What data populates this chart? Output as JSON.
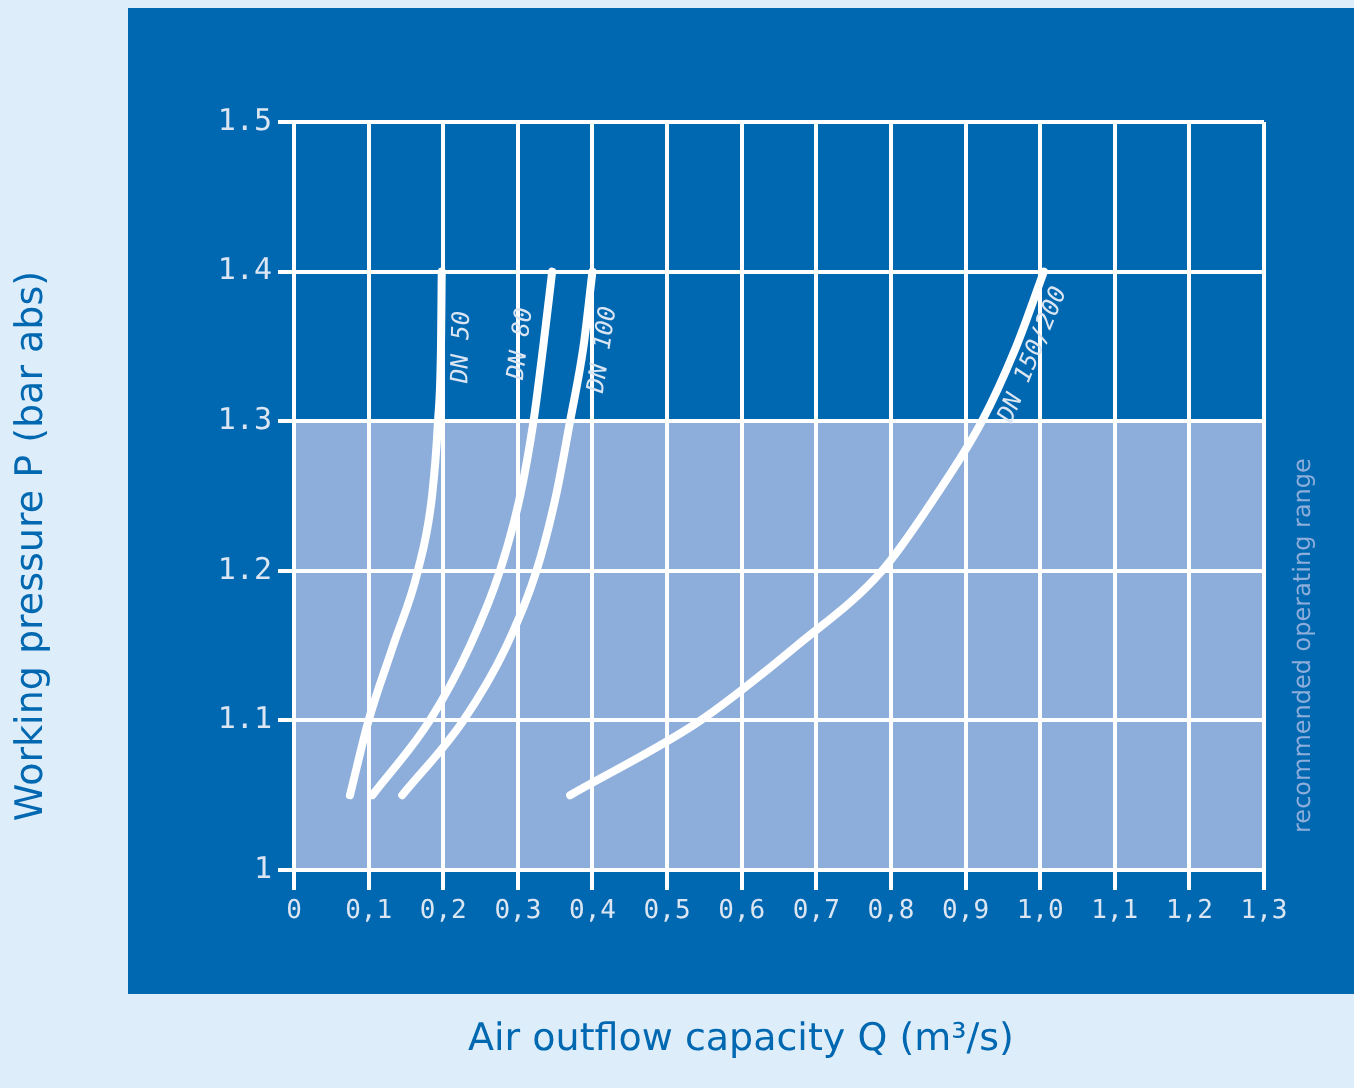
{
  "chart_data": {
    "type": "line",
    "xlabel": "Air outflow capacity Q (m³/s)",
    "ylabel": "Working pressure P (bar abs)",
    "xlim": [
      0,
      1.3
    ],
    "ylim": [
      1,
      1.5
    ],
    "xticks": [
      0,
      {
        "value": 0.1,
        "label": "0,1"
      },
      {
        "value": 0.2,
        "label": "0,2"
      },
      {
        "value": 0.3,
        "label": "0,3"
      },
      {
        "value": 0.4,
        "label": "0,4"
      },
      {
        "value": 0.5,
        "label": "0,5"
      },
      {
        "value": 0.6,
        "label": "0,6"
      },
      {
        "value": 0.7,
        "label": "0,7"
      },
      {
        "value": 0.8,
        "label": "0,8"
      },
      {
        "value": 0.9,
        "label": "0,9"
      },
      {
        "value": 1.0,
        "label": "1,0"
      },
      {
        "value": 1.1,
        "label": "1,1"
      },
      {
        "value": 1.2,
        "label": "1,2"
      },
      {
        "value": 1.3,
        "label": "1,3"
      }
    ],
    "yticks": [
      1,
      1.1,
      1.2,
      1.3,
      1.4,
      1.5
    ],
    "grid": true,
    "legend": false,
    "bands": [
      {
        "axis": "y",
        "from": 1,
        "to": 1.3,
        "label": "recommended operating range",
        "color": "#8daedb"
      }
    ],
    "series": [
      {
        "name": "DN 50",
        "color": "#ffffff",
        "x": [
          0.075,
          0.1,
          0.133,
          0.166,
          0.185,
          0.193,
          0.197,
          0.198
        ],
        "values": [
          1.05,
          1.1,
          1.15,
          1.2,
          1.25,
          1.3,
          1.35,
          1.4
        ]
      },
      {
        "name": "DN 80",
        "color": "#ffffff",
        "x": [
          0.105,
          0.182,
          0.236,
          0.276,
          0.303,
          0.321,
          0.334,
          0.346
        ],
        "values": [
          1.05,
          1.1,
          1.15,
          1.2,
          1.25,
          1.3,
          1.35,
          1.4
        ]
      },
      {
        "name": "DN 100",
        "color": "#ffffff",
        "x": [
          0.145,
          0.227,
          0.285,
          0.325,
          0.351,
          0.37,
          0.388,
          0.4
        ],
        "values": [
          1.05,
          1.1,
          1.15,
          1.2,
          1.25,
          1.3,
          1.35,
          1.4
        ]
      },
      {
        "name": "DN 150/200",
        "color": "#ffffff",
        "x": [
          0.37,
          0.545,
          0.674,
          0.788,
          0.86,
          0.922,
          0.968,
          1.005
        ],
        "values": [
          1.05,
          1.1,
          1.15,
          1.2,
          1.25,
          1.3,
          1.35,
          1.4
        ]
      }
    ]
  }
}
